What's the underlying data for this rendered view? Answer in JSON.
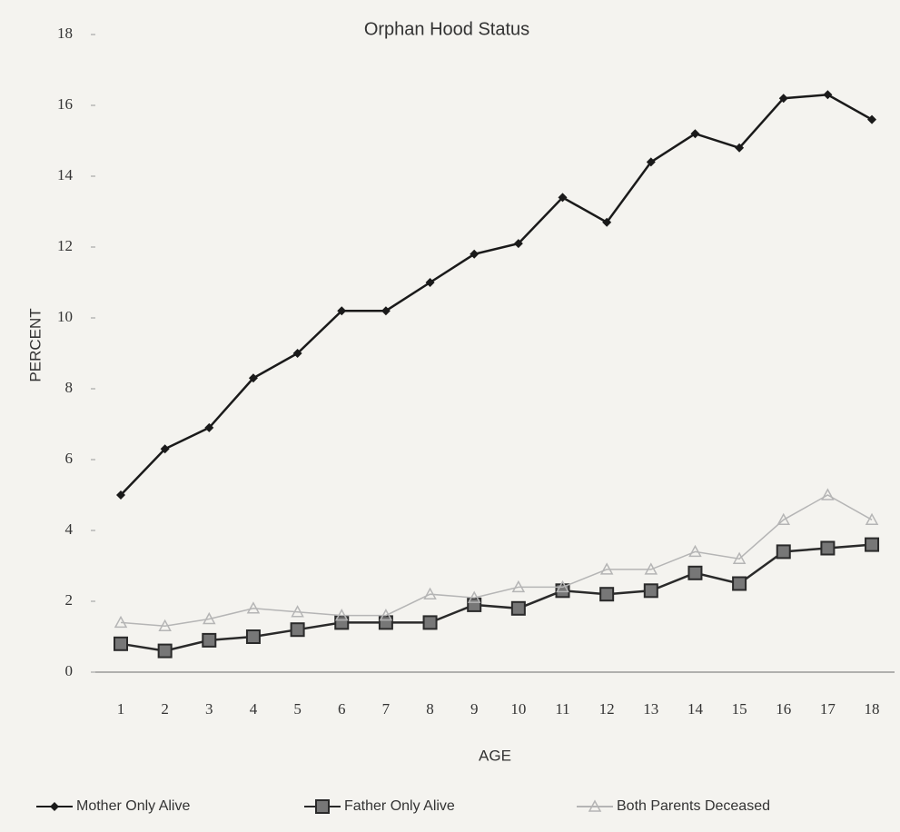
{
  "chart_data": {
    "type": "line",
    "title": "Orphan Hood Status",
    "x_label": "AGE",
    "y_label": "PERCENT",
    "categories": [
      "1",
      "2",
      "3",
      "4",
      "5",
      "6",
      "7",
      "8",
      "9",
      "10",
      "11",
      "12",
      "13",
      "14",
      "15",
      "16",
      "17",
      "18"
    ],
    "series": [
      {
        "name": "Mother Only Alive",
        "color": "#1a1a1a",
        "marker": "diamond",
        "values": [
          5.0,
          6.3,
          6.9,
          8.3,
          9.0,
          10.2,
          10.2,
          11.0,
          11.8,
          12.1,
          13.4,
          12.7,
          14.4,
          15.2,
          14.8,
          16.2,
          16.3,
          15.6
        ]
      },
      {
        "name": "Father Only Alive",
        "color": "#2a2a2a",
        "marker": "square",
        "values": [
          0.8,
          0.6,
          0.9,
          1.0,
          1.2,
          1.4,
          1.4,
          1.4,
          1.9,
          1.8,
          2.3,
          2.2,
          2.3,
          2.8,
          2.5,
          3.4,
          3.5,
          3.6
        ]
      },
      {
        "name": "Both Parents Deceased",
        "color": "#b5b5b5",
        "marker": "triangle",
        "values": [
          1.4,
          1.3,
          1.5,
          1.8,
          1.7,
          1.6,
          1.6,
          2.2,
          2.1,
          2.4,
          2.4,
          2.9,
          2.9,
          3.4,
          3.2,
          4.3,
          5.0,
          4.3
        ]
      }
    ],
    "ylim": [
      0,
      18
    ],
    "yticks": [
      0,
      2,
      4,
      6,
      8,
      10,
      12,
      14,
      16,
      18
    ],
    "grid": false,
    "legend": "bottom"
  }
}
